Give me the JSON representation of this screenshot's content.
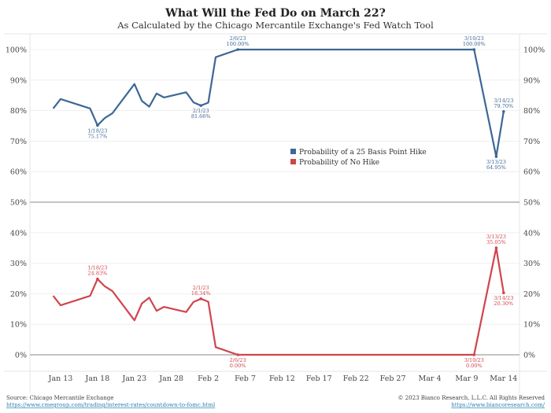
{
  "chart_data": {
    "type": "line",
    "title": "What Will the Fed Do on March 22?",
    "subtitle": "As Calculated by the Chicago Mercantile Exchange's Fed Watch Tool",
    "ylim": [
      0,
      100
    ],
    "yticks": [
      0,
      10,
      20,
      30,
      40,
      50,
      60,
      70,
      80,
      90,
      100
    ],
    "ytick_labels": [
      "0%",
      "10%",
      "20%",
      "30%",
      "40%",
      "50%",
      "60%",
      "70%",
      "80%",
      "90%",
      "100%"
    ],
    "xtick_labels": [
      "Jan 13",
      "Jan 18",
      "Jan 23",
      "Jan 28",
      "Feb 2",
      "Feb 7",
      "Feb 12",
      "Feb 17",
      "Feb 22",
      "Feb 27",
      "Mar 4",
      "Mar 9",
      "Mar 14"
    ],
    "xtick_dates": [
      "2023-01-13",
      "2023-01-18",
      "2023-01-23",
      "2023-01-28",
      "2023-02-02",
      "2023-02-07",
      "2023-02-12",
      "2023-02-17",
      "2023-02-22",
      "2023-02-27",
      "2023-03-04",
      "2023-03-09",
      "2023-03-14"
    ],
    "legend_position": "center",
    "series": [
      {
        "name": "Probability of a 25 Basis Point Hike",
        "color": "#3d6796",
        "x": [
          "2023-01-12",
          "2023-01-13",
          "2023-01-17",
          "2023-01-18",
          "2023-01-19",
          "2023-01-20",
          "2023-01-23",
          "2023-01-24",
          "2023-01-25",
          "2023-01-26",
          "2023-01-27",
          "2023-01-30",
          "2023-01-31",
          "2023-02-01",
          "2023-02-02",
          "2023-02-03",
          "2023-02-06",
          "2023-03-10",
          "2023-03-13",
          "2023-03-14"
        ],
        "values": [
          80.7,
          83.8,
          80.7,
          75.17,
          77.6,
          79.1,
          88.7,
          83.2,
          81.3,
          85.6,
          84.3,
          86.0,
          82.7,
          81.66,
          82.6,
          97.5,
          100,
          100,
          64.95,
          79.7
        ],
        "annotations": [
          {
            "date": "2023-01-18",
            "label": "1/18/23",
            "value": "75.17%",
            "pos": "below"
          },
          {
            "date": "2023-02-01",
            "label": "2/1/23",
            "value": "81.66%",
            "pos": "below"
          },
          {
            "date": "2023-02-06",
            "label": "2/6/23",
            "value": "100.00%",
            "pos": "above"
          },
          {
            "date": "2023-03-10",
            "label": "3/10/23",
            "value": "100.00%",
            "pos": "above"
          },
          {
            "date": "2023-03-13",
            "label": "3/13/23",
            "value": "64.95%",
            "pos": "below"
          },
          {
            "date": "2023-03-14",
            "label": "3/14/23",
            "value": "79.70%",
            "pos": "above"
          }
        ]
      },
      {
        "name": "Probability of No Hike",
        "color": "#cf454d",
        "x": [
          "2023-01-12",
          "2023-01-13",
          "2023-01-17",
          "2023-01-18",
          "2023-01-19",
          "2023-01-20",
          "2023-01-23",
          "2023-01-24",
          "2023-01-25",
          "2023-01-26",
          "2023-01-27",
          "2023-01-30",
          "2023-01-31",
          "2023-02-01",
          "2023-02-02",
          "2023-02-03",
          "2023-02-06",
          "2023-03-10",
          "2023-03-13",
          "2023-03-14"
        ],
        "values": [
          19.3,
          16.2,
          19.3,
          24.83,
          22.4,
          20.9,
          11.3,
          16.8,
          18.7,
          14.4,
          15.7,
          14.0,
          17.3,
          18.34,
          17.4,
          2.5,
          0,
          0,
          35.05,
          20.3
        ],
        "annotations": [
          {
            "date": "2023-01-18",
            "label": "1/18/23",
            "value": "24.83%",
            "pos": "above"
          },
          {
            "date": "2023-02-01",
            "label": "2/1/23",
            "value": "18.34%",
            "pos": "above"
          },
          {
            "date": "2023-02-06",
            "label": "2/6/23",
            "value": "0.00%",
            "pos": "below"
          },
          {
            "date": "2023-03-10",
            "label": "3/10/23",
            "value": "0.00%",
            "pos": "below"
          },
          {
            "date": "2023-03-13",
            "label": "3/13/23",
            "value": "35.05%",
            "pos": "above"
          },
          {
            "date": "2023-03-14",
            "label": "3/14/23",
            "value": "20.30%",
            "pos": "below"
          }
        ]
      }
    ]
  },
  "footer": {
    "source": "Source: Chicago Mercantile Exchange",
    "source_url": "https://www.cmegroup.com/trading/interest-rates/countdown-to-fomc.html",
    "copyright": "© 2023 Bianco Research, L.L.C. All Rights Reserved",
    "site_url": "https://www.biancoresearch.com/"
  }
}
